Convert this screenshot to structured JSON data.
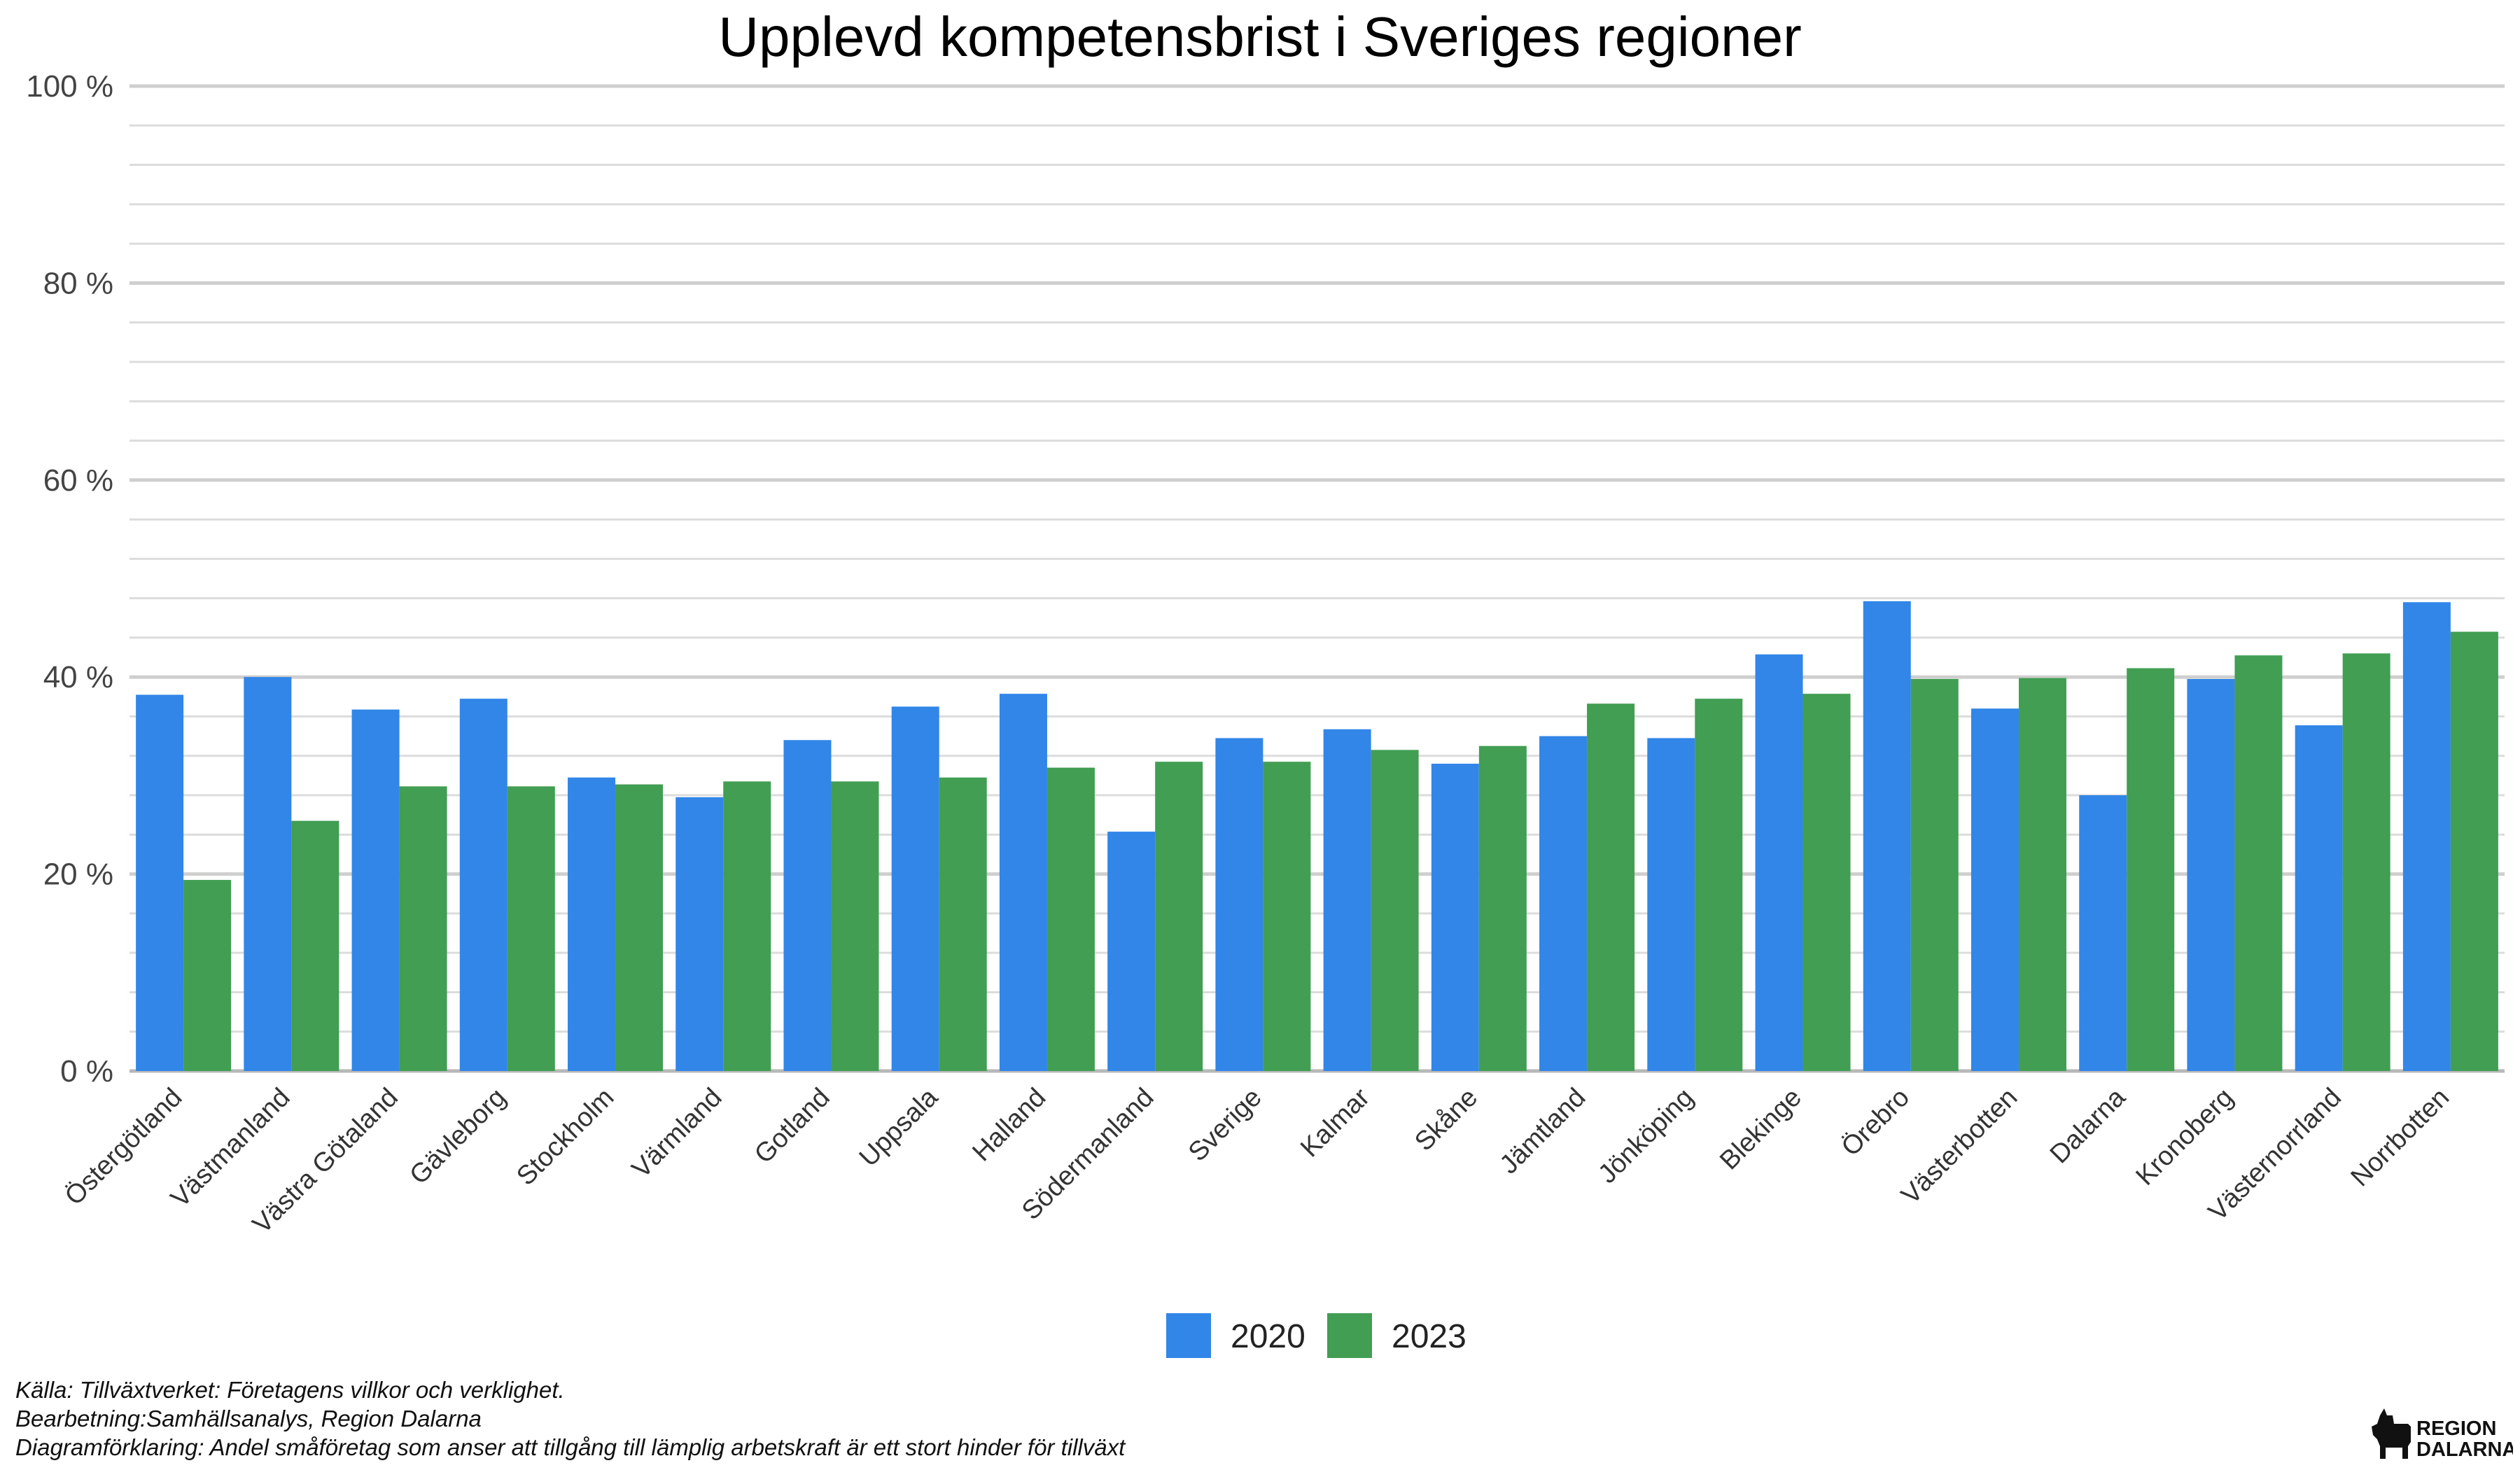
{
  "chart_data": {
    "type": "bar",
    "title": "Upplevd kompetensbrist i Sveriges regioner",
    "xlabel": "",
    "ylabel": "",
    "ylim": [
      0,
      100
    ],
    "yticks": [
      0,
      20,
      40,
      60,
      80,
      100
    ],
    "ytick_labels": [
      "0 %",
      "20 %",
      "40 %",
      "60 %",
      "80 %",
      "100 %"
    ],
    "grid": true,
    "legend_position": "bottom",
    "categories": [
      "Östergötland",
      "Västmanland",
      "Västra Götaland",
      "Gävleborg",
      "Stockholm",
      "Värmland",
      "Gotland",
      "Uppsala",
      "Halland",
      "Södermanland",
      "Sverige",
      "Kalmar",
      "Skåne",
      "Jämtland",
      "Jönköping",
      "Blekinge",
      "Örebro",
      "Västerbotten",
      "Dalarna",
      "Kronoberg",
      "Västernorrland",
      "Norrbotten"
    ],
    "series": [
      {
        "name": "2020",
        "color": "#3186E8",
        "values": [
          38.2,
          40.0,
          36.7,
          37.8,
          29.8,
          27.8,
          33.6,
          37.0,
          38.3,
          24.3,
          33.8,
          34.7,
          31.2,
          34.0,
          33.8,
          42.3,
          47.7,
          36.8,
          28.0,
          39.8,
          35.1,
          47.6
        ]
      },
      {
        "name": "2023",
        "color": "#419E53",
        "values": [
          19.4,
          25.4,
          28.9,
          28.9,
          29.1,
          29.4,
          29.4,
          29.8,
          30.8,
          31.4,
          31.4,
          32.6,
          33.0,
          37.3,
          37.8,
          38.3,
          39.8,
          39.9,
          40.9,
          42.2,
          42.4,
          44.6
        ]
      }
    ]
  },
  "footnotes": {
    "source": "Källa: Tillväxtverket: Företagens villkor och verklighet.",
    "processing": "Bearbetning:Samhällsanalys, Region Dalarna",
    "explanation": "Diagramförklaring: Andel småföretag som anser att tillgång till lämplig arbetskraft är ett stort hinder för tillväxt"
  },
  "logo": {
    "line1": "REGION",
    "line2": "DALARNA",
    "icon": "dala-horse-icon",
    "color": "#111111"
  }
}
